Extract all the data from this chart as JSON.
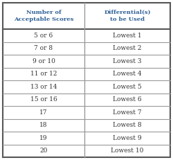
{
  "col1_header": "Number of\nAcceptable Scores",
  "col2_header": "Differential(s)\nto be Used",
  "rows": [
    [
      "5 or 6",
      "Lowest 1"
    ],
    [
      "7 or 8",
      "Lowest 2"
    ],
    [
      "9 or 10",
      "Lowest 3"
    ],
    [
      "11 or 12",
      "Lowest 4"
    ],
    [
      "13 or 14",
      "Lowest 5"
    ],
    [
      "15 or 16",
      "Lowest 6"
    ],
    [
      "17",
      "Lowest 7"
    ],
    [
      "18",
      "Lowest 8"
    ],
    [
      "19",
      "Lowest 9"
    ],
    [
      "20",
      "Lowest 10"
    ]
  ],
  "header_color": "#2e6096",
  "text_color": "#333333",
  "border_color": "#999999",
  "bg_color": "#ffffff",
  "outer_border_color": "#555555",
  "figsize": [
    2.5,
    2.31
  ],
  "dpi": 100
}
